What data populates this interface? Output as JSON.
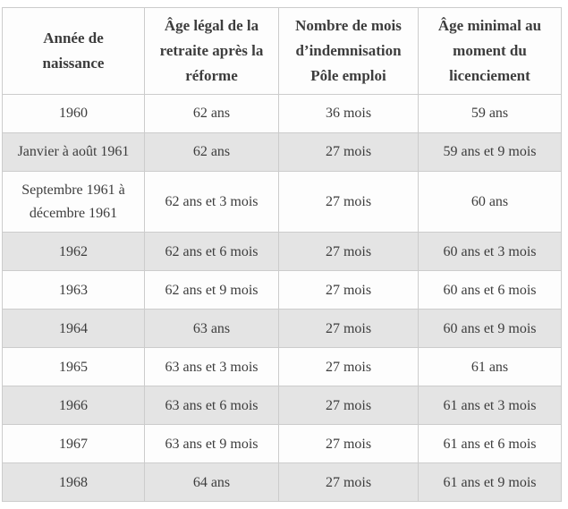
{
  "colors": {
    "row_background": "#fdfdfd",
    "row_alt_background": "#e4e4e4",
    "border": "#cccccc",
    "text": "#3d3d3d"
  },
  "table": {
    "columns": [
      "Année de naissance",
      "Âge légal de la retraite après la réforme",
      "Nombre de mois d’indemnisation Pôle emploi",
      "Âge minimal au moment du licenciement"
    ],
    "rows": [
      [
        "1960",
        "62 ans",
        "36 mois",
        "59 ans"
      ],
      [
        "Janvier à août 1961",
        "62 ans",
        "27 mois",
        "59 ans et 9 mois"
      ],
      [
        "Septembre 1961 à décembre 1961",
        "62 ans et 3 mois",
        "27 mois",
        "60 ans"
      ],
      [
        "1962",
        "62 ans et 6 mois",
        "27 mois",
        "60 ans et 3 mois"
      ],
      [
        "1963",
        "62 ans et 9 mois",
        "27 mois",
        "60 ans et 6 mois"
      ],
      [
        "1964",
        "63 ans",
        "27 mois",
        "60 ans et 9 mois"
      ],
      [
        "1965",
        "63 ans et 3 mois",
        "27 mois",
        "61 ans"
      ],
      [
        "1966",
        "63 ans et 6 mois",
        "27 mois",
        "61 ans et 3 mois"
      ],
      [
        "1967",
        "63 ans et 9 mois",
        "27 mois",
        "61 ans et 6 mois"
      ],
      [
        "1968",
        "64 ans",
        "27 mois",
        "61 ans et 9 mois"
      ]
    ]
  }
}
